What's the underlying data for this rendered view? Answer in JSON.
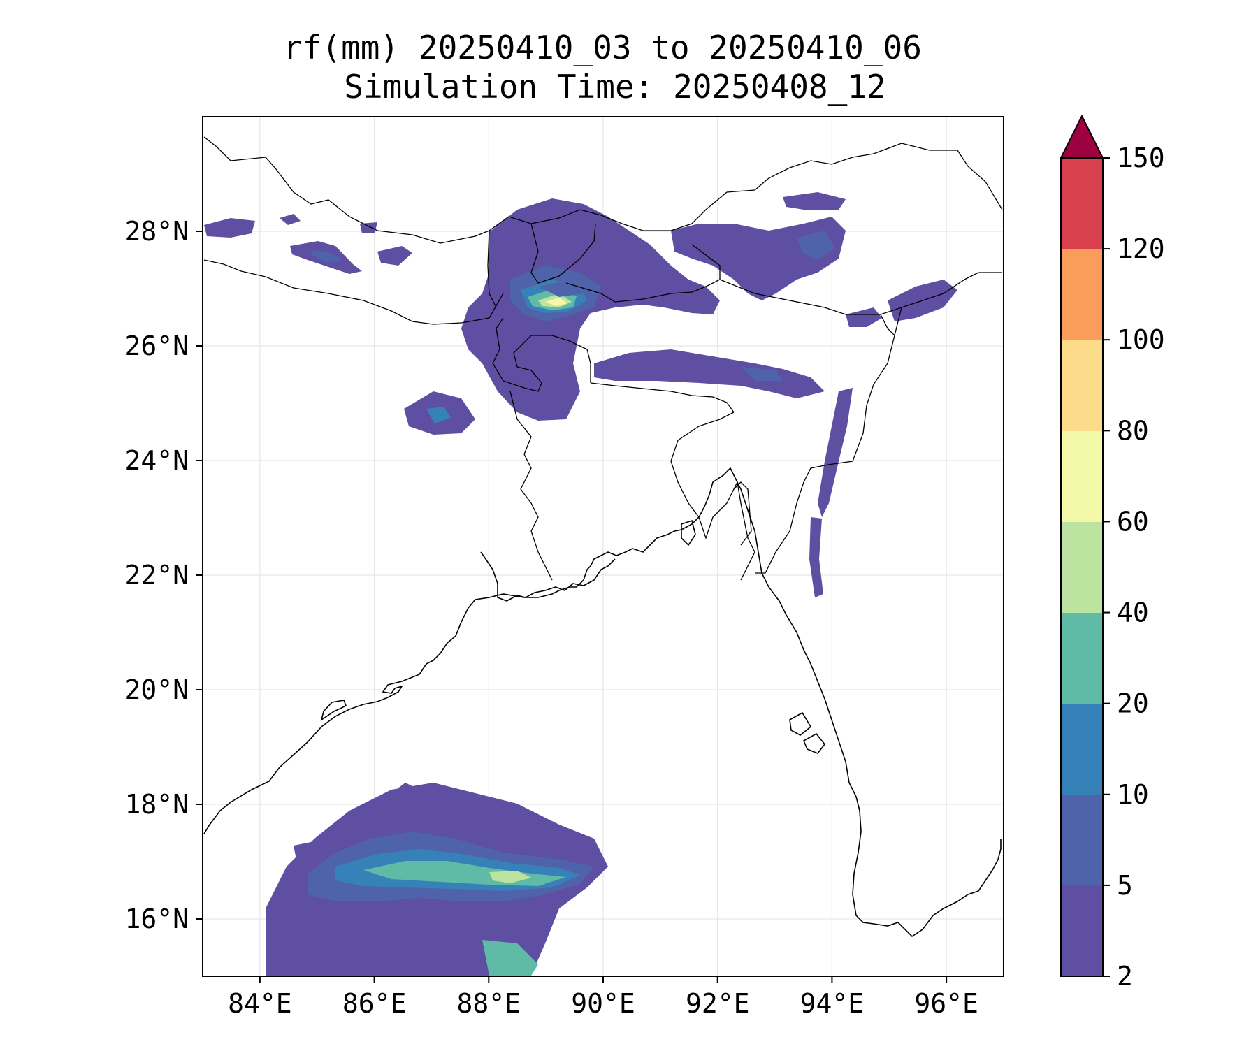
{
  "title": {
    "line1": "rf(mm) 20250410_03 to 20250410_06",
    "line2": "Simulation Time: 20250408_12"
  },
  "map": {
    "lon_range": [
      83.0,
      97.0
    ],
    "lat_range": [
      15.0,
      30.0
    ],
    "x_ticks": [
      "84°E",
      "86°E",
      "88°E",
      "90°E",
      "92°E",
      "94°E",
      "96°E"
    ],
    "y_ticks": [
      "28°N",
      "26°N",
      "24°N",
      "22°N",
      "20°N",
      "18°N",
      "16°N"
    ],
    "gridlines": true
  },
  "colorbar": {
    "levels": [
      "2",
      "5",
      "10",
      "20",
      "40",
      "60",
      "80",
      "100",
      "120",
      "150"
    ],
    "colors": [
      "#5e4fa2",
      "#4f63ab",
      "#3781b9",
      "#5fbaa6",
      "#bde3a0",
      "#f4f9a9",
      "#fcdc8b",
      "#fa9c5a",
      "#d8404e",
      "#9e0142"
    ],
    "extend": "max"
  }
}
